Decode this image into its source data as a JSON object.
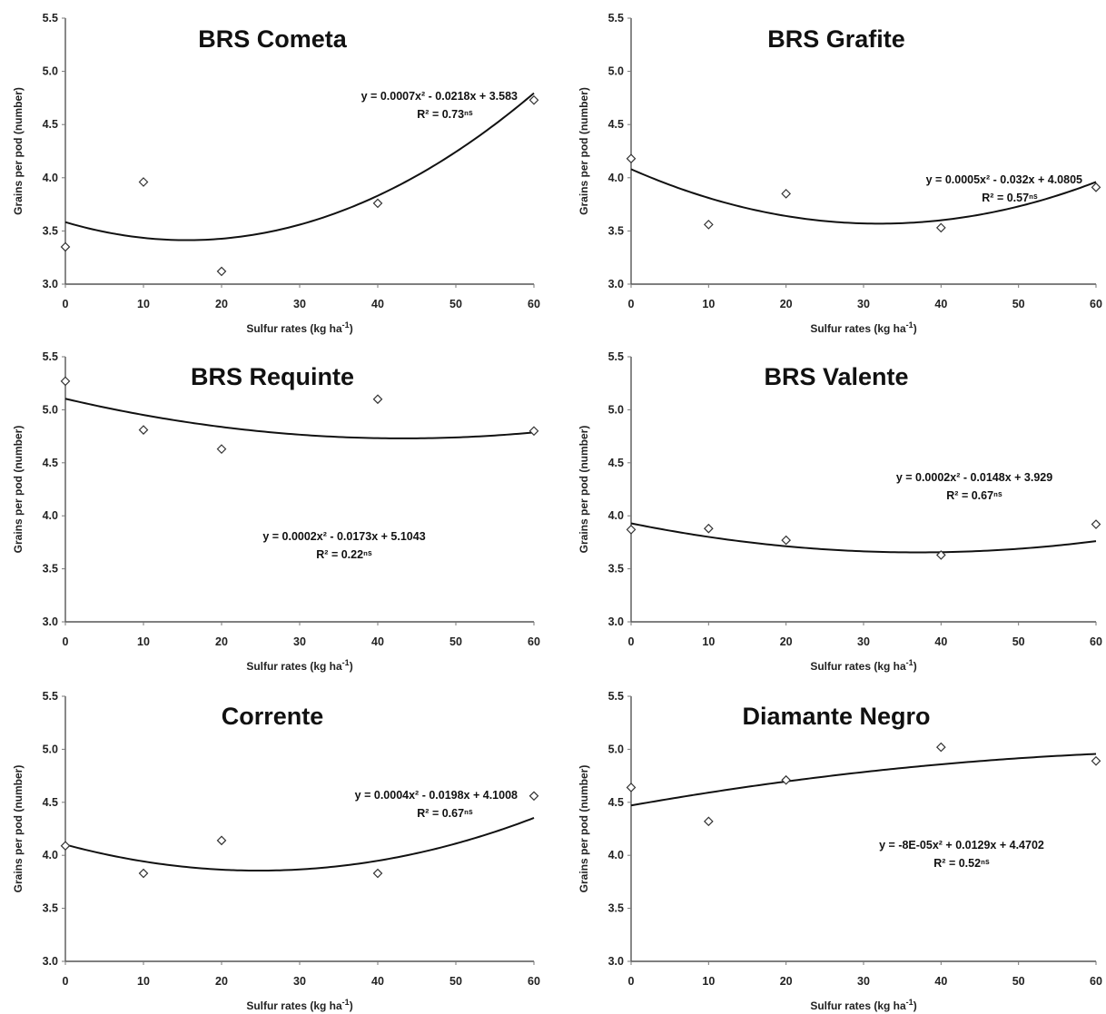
{
  "chart_data": [
    {
      "type": "scatter",
      "title": "BRS Cometa",
      "xlabel": "Sulfur rates (kg ha",
      "xlabel_sup": "-1",
      "xlabel_end": ")",
      "ylabel": "Grains per pod (number)",
      "x_ticks": [
        "0",
        "10",
        "20",
        "30",
        "40",
        "50",
        "60"
      ],
      "y_ticks": [
        "3.0",
        "3.5",
        "4.0",
        "4.5",
        "5.0",
        "5.5"
      ],
      "xlim": [
        0,
        60
      ],
      "ylim": [
        3.0,
        5.5
      ],
      "grid": false,
      "legend": "none",
      "x": [
        0,
        10,
        20,
        40,
        60
      ],
      "y": [
        3.35,
        3.96,
        3.12,
        3.76,
        4.73
      ],
      "trendline": {
        "type": "quadratic",
        "a": 0.0007,
        "b": -0.0218,
        "c": 3.583
      },
      "equation": "y = 0.0007x² - 0.0218x + 3.583",
      "r2": "R² = 0.73ⁿˢ"
    },
    {
      "type": "scatter",
      "title": "BRS Grafite",
      "xlabel": "Sulfur rates (kg ha",
      "xlabel_sup": "-1",
      "xlabel_end": ")",
      "ylabel": "Grains per pod (number)",
      "x_ticks": [
        "0",
        "10",
        "20",
        "30",
        "40",
        "50",
        "60"
      ],
      "y_ticks": [
        "3.0",
        "3.5",
        "4.0",
        "4.5",
        "5.0",
        "5.5"
      ],
      "xlim": [
        0,
        60
      ],
      "ylim": [
        3.0,
        5.5
      ],
      "grid": false,
      "legend": "none",
      "x": [
        0,
        10,
        20,
        40,
        60
      ],
      "y": [
        4.18,
        3.56,
        3.85,
        3.53,
        3.91
      ],
      "trendline": {
        "type": "quadratic",
        "a": 0.0005,
        "b": -0.032,
        "c": 4.0805
      },
      "equation": "y = 0.0005x² - 0.032x + 4.0805",
      "r2": "R² = 0.57ⁿˢ"
    },
    {
      "type": "scatter",
      "title": "BRS Requinte",
      "xlabel": "Sulfur rates (kg ha",
      "xlabel_sup": "-1",
      "xlabel_end": ")",
      "ylabel": "Grains per pod (number)",
      "x_ticks": [
        "0",
        "10",
        "20",
        "30",
        "40",
        "50",
        "60"
      ],
      "y_ticks": [
        "3.0",
        "3.5",
        "4.0",
        "4.5",
        "5.0",
        "5.5"
      ],
      "xlim": [
        0,
        60
      ],
      "ylim": [
        3.0,
        5.5
      ],
      "grid": false,
      "legend": "none",
      "x": [
        0,
        10,
        20,
        40,
        60
      ],
      "y": [
        5.27,
        4.81,
        4.63,
        5.1,
        4.8
      ],
      "trendline": {
        "type": "quadratic",
        "a": 0.0002,
        "b": -0.0173,
        "c": 5.1043
      },
      "equation": "y = 0.0002x² - 0.0173x + 5.1043",
      "r2": "R² = 0.22ⁿˢ"
    },
    {
      "type": "scatter",
      "title": "BRS Valente",
      "xlabel": "Sulfur rates (kg ha",
      "xlabel_sup": "-1",
      "xlabel_end": ")",
      "ylabel": "Grains per pod (number)",
      "x_ticks": [
        "0",
        "10",
        "20",
        "30",
        "40",
        "50",
        "60"
      ],
      "y_ticks": [
        "3.0",
        "3.5",
        "4.0",
        "4.5",
        "5.0",
        "5.5"
      ],
      "xlim": [
        0,
        60
      ],
      "ylim": [
        3.0,
        5.5
      ],
      "grid": false,
      "legend": "none",
      "x": [
        0,
        10,
        20,
        40,
        60
      ],
      "y": [
        3.87,
        3.88,
        3.77,
        3.63,
        3.92
      ],
      "trendline": {
        "type": "quadratic",
        "a": 0.0002,
        "b": -0.0148,
        "c": 3.929
      },
      "equation": "y = 0.0002x² - 0.0148x + 3.929",
      "r2": "R² = 0.67ⁿˢ"
    },
    {
      "type": "scatter",
      "title": "Corrente",
      "xlabel": "Sulfur rates (kg ha",
      "xlabel_sup": "-1",
      "xlabel_end": ")",
      "ylabel": "Grains per pod (number)",
      "x_ticks": [
        "0",
        "10",
        "20",
        "30",
        "40",
        "50",
        "60"
      ],
      "y_ticks": [
        "3.0",
        "3.5",
        "4.0",
        "4.5",
        "5.0",
        "5.5"
      ],
      "xlim": [
        0,
        60
      ],
      "ylim": [
        3.0,
        5.5
      ],
      "grid": false,
      "legend": "none",
      "x": [
        0,
        10,
        20,
        40,
        60
      ],
      "y": [
        4.09,
        3.83,
        4.14,
        3.83,
        4.56
      ],
      "trendline": {
        "type": "quadratic",
        "a": 0.0004,
        "b": -0.0198,
        "c": 4.1008
      },
      "equation": "y = 0.0004x² - 0.0198x + 4.1008",
      "r2": "R² = 0.67ⁿˢ"
    },
    {
      "type": "scatter",
      "title": "Diamante Negro",
      "xlabel": "Sulfur rates (kg ha",
      "xlabel_sup": "-1",
      "xlabel_end": ")",
      "ylabel": "Grains per pod (number)",
      "x_ticks": [
        "0",
        "10",
        "20",
        "30",
        "40",
        "50",
        "60"
      ],
      "y_ticks": [
        "3.0",
        "3.5",
        "4.0",
        "4.5",
        "5.0",
        "5.5"
      ],
      "xlim": [
        0,
        60
      ],
      "ylim": [
        3.0,
        5.5
      ],
      "grid": false,
      "legend": "none",
      "x": [
        0,
        10,
        20,
        40,
        60
      ],
      "y": [
        4.64,
        4.32,
        4.71,
        5.02,
        4.89
      ],
      "trendline": {
        "type": "quadratic",
        "a": -8e-05,
        "b": 0.0129,
        "c": 4.4702
      },
      "equation": "y = -8E-05x² + 0.0129x + 4.4702",
      "r2": "R² = 0.52ⁿˢ"
    }
  ]
}
